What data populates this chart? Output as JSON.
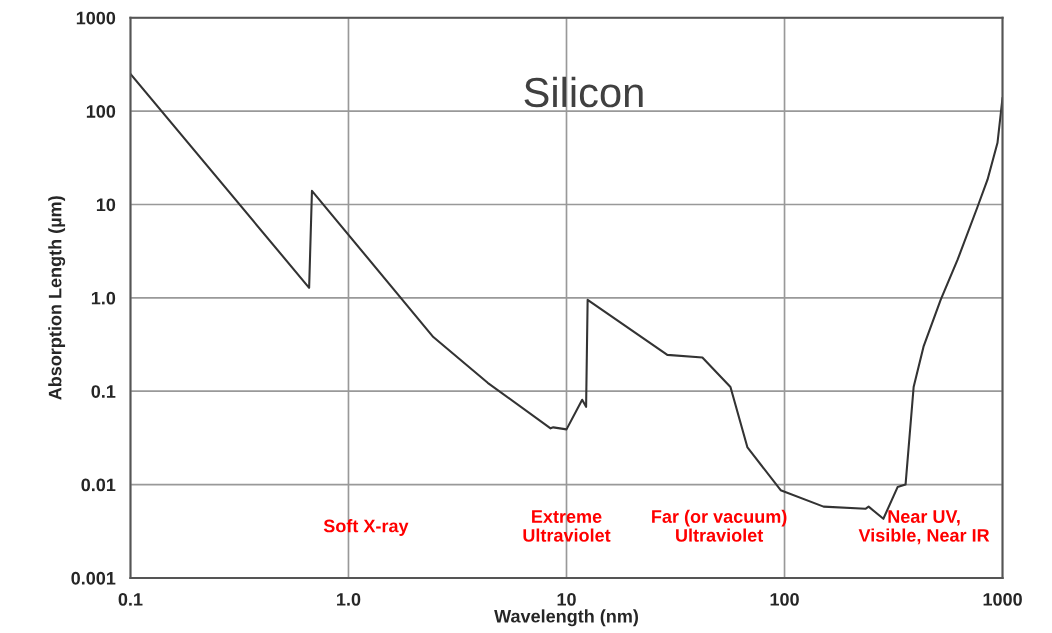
{
  "chart_data": {
    "type": "line",
    "xlabel": "Wavelength (nm)",
    "ylabel": "Absorption Length (µm)",
    "log": "xy",
    "grid": true,
    "marker": "none",
    "line_style": "solid",
    "xlim": [
      0.1,
      1000
    ],
    "ylim": [
      0.001,
      1000
    ],
    "xticks": [
      0.1,
      {
        "value": 1,
        "label": "1.0"
      },
      10,
      100,
      1000
    ],
    "yticks": [
      0.001,
      0.01,
      0.1,
      {
        "value": 1,
        "label": "1.0"
      },
      10,
      100,
      1000
    ],
    "series": [
      {
        "color": "#333333",
        "x": [
          0.1,
          0.66,
          0.68,
          2.45,
          4.35,
          8.45,
          8.7,
          10,
          11.8,
          12.3,
          12.5,
          29,
          42,
          56.5,
          67.6,
          96,
          151,
          235,
          243,
          284,
          330,
          359,
          391,
          434,
          520,
          622,
          768,
          853,
          948,
          1000
        ],
        "values": [
          250,
          1.28,
          14,
          0.38,
          0.123,
          0.04,
          0.041,
          0.039,
          0.081,
          0.068,
          0.95,
          0.245,
          0.23,
          0.111,
          0.025,
          0.0087,
          0.0058,
          0.0055,
          0.0058,
          0.0043,
          0.0094,
          0.01,
          0.111,
          0.3,
          0.95,
          2.56,
          9.45,
          18.4,
          45.8,
          139
        ]
      }
    ],
    "annotations": [
      "Silicon",
      "Soft X-ray",
      "Extreme\nUltraviolet",
      "Far (or vacuum)\nUltraviolet",
      "Near UV,\nVisible, Near IR"
    ]
  }
}
